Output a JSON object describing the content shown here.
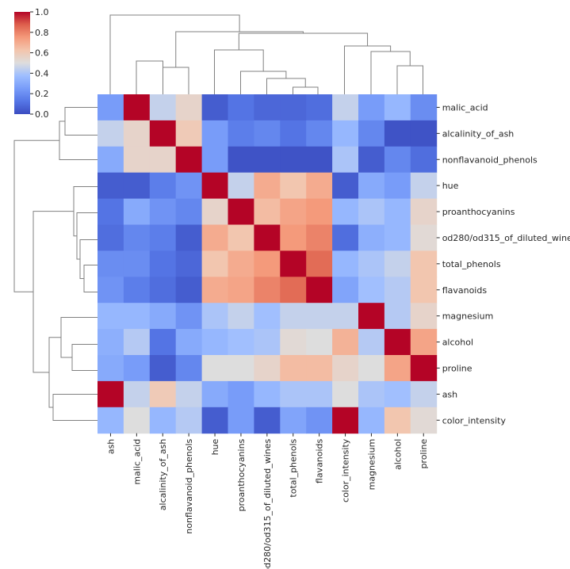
{
  "chart_data": {
    "type": "heatmap",
    "subtype": "clustermap",
    "colormap": "coolwarm",
    "vmin": 0,
    "vmax": 1,
    "colorbar_ticks": [
      "0.0",
      "0.2",
      "0.4",
      "0.6",
      "0.8",
      "1.0"
    ],
    "row_labels": [
      "malic_acid",
      "alcalinity_of_ash",
      "nonflavanoid_phenols",
      "hue",
      "proanthocyanins",
      "od280/od315_of_diluted_wines",
      "total_phenols",
      "flavanoids",
      "magnesium",
      "alcohol",
      "proline",
      "ash",
      "color_intensity"
    ],
    "col_labels": [
      "ash",
      "malic_acid",
      "alcalinity_of_ash",
      "nonflavanoid_phenols",
      "hue",
      "proanthocyanins",
      "od280/od315_of_diluted_wines",
      "total_phenols",
      "flavanoids",
      "color_intensity",
      "magnesium",
      "alcohol",
      "proline"
    ],
    "values": [
      [
        0.25,
        1.0,
        0.45,
        0.55,
        0.05,
        0.12,
        0.08,
        0.08,
        0.1,
        0.45,
        0.25,
        0.35,
        0.2
      ],
      [
        0.45,
        0.55,
        1.0,
        0.6,
        0.25,
        0.15,
        0.18,
        0.12,
        0.18,
        0.35,
        0.18,
        0.02,
        0.02
      ],
      [
        0.3,
        0.55,
        0.55,
        1.0,
        0.25,
        0.02,
        0.02,
        0.02,
        0.02,
        0.4,
        0.05,
        0.18,
        0.1
      ],
      [
        0.05,
        0.05,
        0.15,
        0.22,
        1.0,
        0.45,
        0.7,
        0.62,
        0.7,
        0.05,
        0.3,
        0.25,
        0.45
      ],
      [
        0.12,
        0.3,
        0.22,
        0.18,
        0.55,
        1.0,
        0.65,
        0.72,
        0.75,
        0.35,
        0.4,
        0.35,
        0.55
      ],
      [
        0.1,
        0.18,
        0.15,
        0.05,
        0.7,
        0.62,
        1.0,
        0.75,
        0.8,
        0.1,
        0.32,
        0.35,
        0.52
      ],
      [
        0.2,
        0.2,
        0.12,
        0.08,
        0.62,
        0.7,
        0.75,
        1.0,
        0.85,
        0.35,
        0.4,
        0.45,
        0.62
      ],
      [
        0.22,
        0.15,
        0.1,
        0.05,
        0.7,
        0.72,
        0.8,
        0.85,
        1.0,
        0.28,
        0.38,
        0.42,
        0.62
      ],
      [
        0.35,
        0.35,
        0.3,
        0.22,
        0.4,
        0.45,
        0.38,
        0.45,
        0.45,
        0.45,
        1.0,
        0.42,
        0.55
      ],
      [
        0.32,
        0.42,
        0.12,
        0.3,
        0.35,
        0.38,
        0.4,
        0.52,
        0.5,
        0.68,
        0.42,
        1.0,
        0.72
      ],
      [
        0.3,
        0.25,
        0.05,
        0.18,
        0.5,
        0.5,
        0.55,
        0.65,
        0.65,
        0.55,
        0.5,
        0.72,
        1.0
      ],
      [
        1.0,
        0.45,
        0.6,
        0.45,
        0.3,
        0.25,
        0.35,
        0.4,
        0.4,
        0.5,
        0.4,
        0.38,
        0.45
      ],
      [
        0.35,
        0.5,
        0.35,
        0.42,
        0.05,
        0.25,
        0.05,
        0.28,
        0.22,
        1.0,
        0.35,
        0.62,
        0.52
      ]
    ]
  }
}
